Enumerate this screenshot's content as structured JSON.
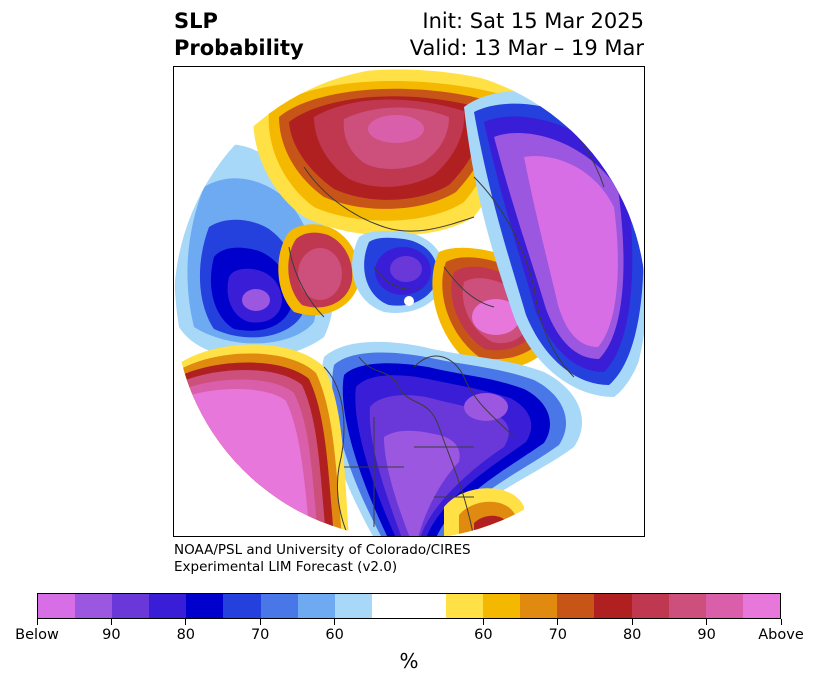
{
  "header": {
    "title_line1": "SLP",
    "title_line2": "Probability",
    "init_text": "Init: Sat 15 Mar 2025",
    "valid_text": "Valid: 13 Mar – 19 Mar"
  },
  "credit": {
    "line1": "NOAA/PSL and University of Colorado/CIRES",
    "line2": "Experimental LIM Forecast (v2.0)"
  },
  "colorbar": {
    "units": "%",
    "below_colors": [
      "#d86ee6",
      "#9b57e0",
      "#6a38d8",
      "#3a1dd6",
      "#0000cc",
      "#2440dd",
      "#4a77e8",
      "#6eaaf2",
      "#a8d8f8"
    ],
    "neutral_color": "#ffffff",
    "above_colors": [
      "#ffe045",
      "#f5b800",
      "#e08a10",
      "#c85518",
      "#b02020",
      "#c03850",
      "#cc4f7c",
      "#da5fab",
      "#e877dc"
    ],
    "tick_labels": [
      "Below",
      "90",
      "80",
      "70",
      "60",
      "60",
      "70",
      "80",
      "90",
      "Above"
    ]
  },
  "map": {
    "projection": "north-polar-stereographic",
    "field": "sea-level-pressure-probability"
  }
}
